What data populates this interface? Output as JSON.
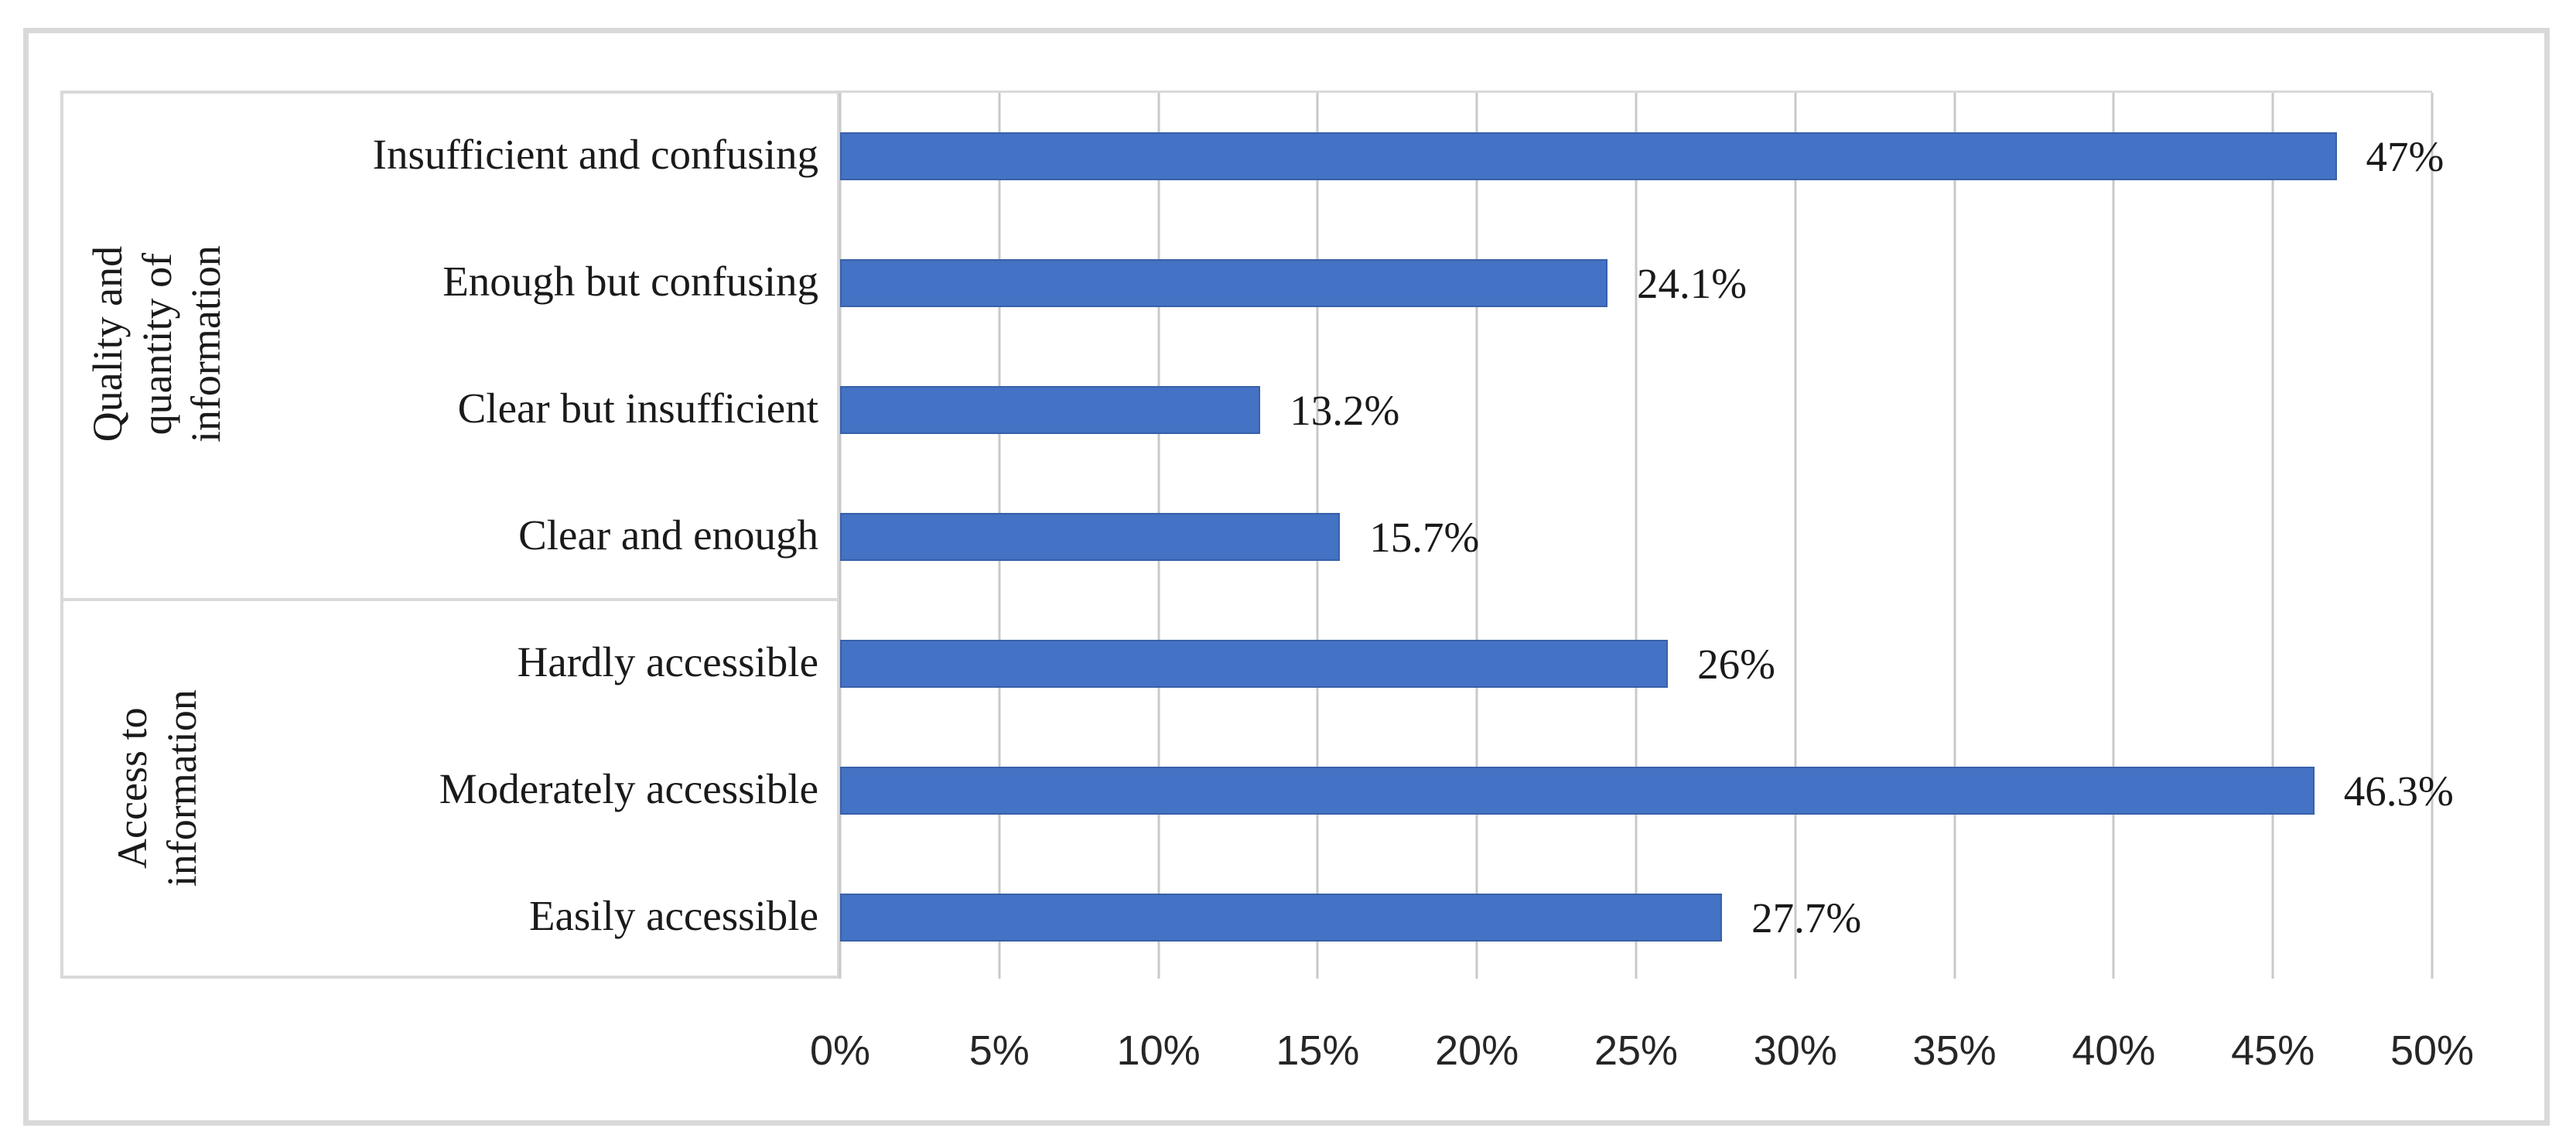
{
  "figure": {
    "background": "#ffffff",
    "outer_border_color": "#d9d9d9",
    "box_border_color": "#d9d9d9"
  },
  "chart_data": {
    "type": "bar",
    "orientation": "horizontal",
    "title": "",
    "xlabel": "",
    "ylabel": "",
    "grid": true,
    "legend": false,
    "bar_color": "#4472c4",
    "gridline_color": "#c9c9c9",
    "x_axis": {
      "min": 0,
      "max": 50,
      "tick_step": 5,
      "tick_labels": [
        "0%",
        "5%",
        "10%",
        "15%",
        "20%",
        "25%",
        "30%",
        "35%",
        "40%",
        "45%",
        "50%"
      ]
    },
    "groups": [
      {
        "label": "Quality and quantity of information",
        "label_lines": [
          "Quality and quantity of",
          "information"
        ],
        "categories": [
          "Insufficient and confusing",
          "Enough but confusing",
          "Clear but insufficient",
          "Clear and enough"
        ],
        "values": [
          47,
          24.1,
          13.2,
          15.7
        ],
        "value_labels": [
          "47%",
          "24.1%",
          "13.2%",
          "15.7%"
        ]
      },
      {
        "label": "Access to information",
        "label_lines": [
          "Access to",
          "information"
        ],
        "categories": [
          "Hardly accessible",
          "Moderately accessible",
          "Easily accessible"
        ],
        "values": [
          26,
          46.3,
          27.7
        ],
        "value_labels": [
          "26%",
          "46.3%",
          "27.7%"
        ]
      }
    ]
  }
}
